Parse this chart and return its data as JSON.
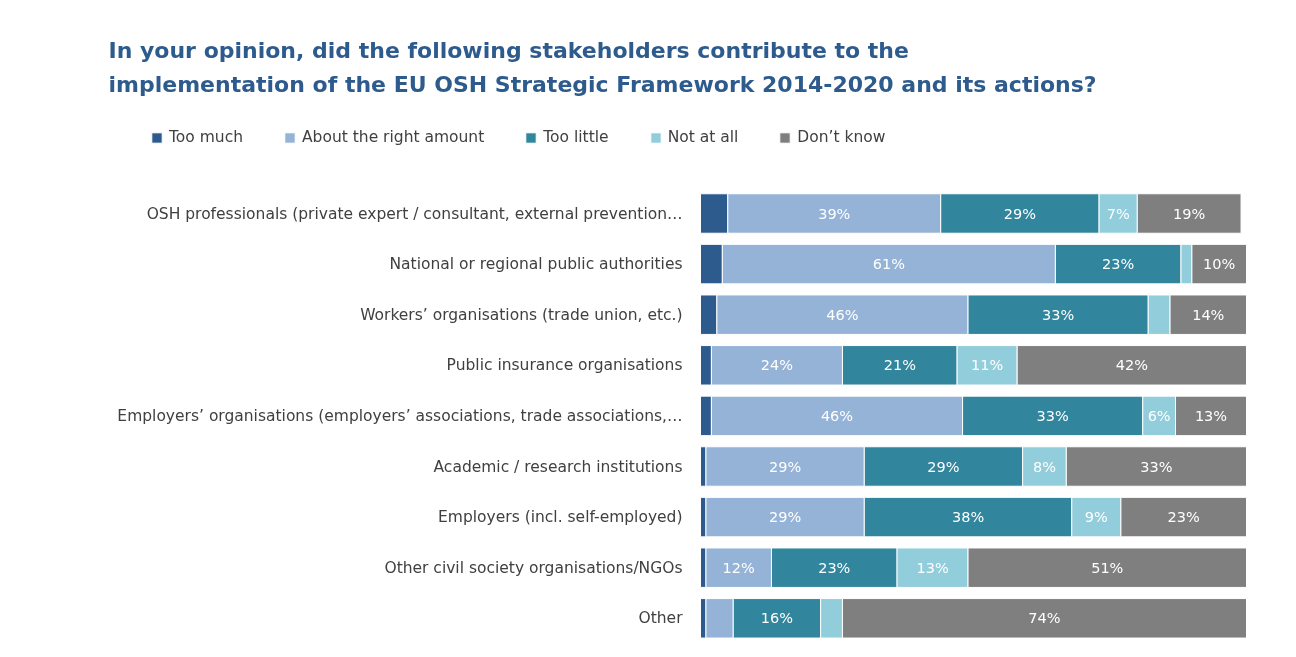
{
  "chart_data": {
    "type": "bar",
    "orientation": "horizontal",
    "stacked": true,
    "legend": "top",
    "grid": false,
    "title": "In your opinion, did the following stakeholders contribute to the implementation of the EU OSH Strategic Framework 2014-2020 and its actions?",
    "categories": [
      "OSH professionals (private expert / consultant, external prevention…",
      "National or regional public authorities",
      "Workers’ organisations (trade union, etc.)",
      "Public insurance organisations",
      "Employers’ organisations (employers’ associations, trade associations,…",
      "Academic / research institutions",
      "Employers (incl. self-employed)",
      "Other civil society organisations/NGOs",
      "Other"
    ],
    "series": [
      {
        "name": "Too much",
        "color": "#2e5b8e",
        "values": [
          5,
          4,
          3,
          2,
          2,
          1,
          1,
          1,
          1
        ],
        "value_labels": [
          null,
          null,
          null,
          null,
          null,
          null,
          null,
          null,
          null
        ]
      },
      {
        "name": "About the right amount",
        "color": "#95b3d7",
        "values": [
          39,
          61,
          46,
          24,
          46,
          29,
          29,
          12,
          5
        ],
        "value_labels": [
          "39%",
          "61%",
          "46%",
          "24%",
          "46%",
          "29%",
          "29%",
          "12%",
          null
        ]
      },
      {
        "name": "Too little",
        "color": "#31859c",
        "values": [
          29,
          23,
          33,
          21,
          33,
          29,
          38,
          23,
          16
        ],
        "value_labels": [
          "29%",
          "23%",
          "33%",
          "21%",
          "33%",
          "29%",
          "38%",
          "23%",
          "16%"
        ]
      },
      {
        "name": "Not at all",
        "color": "#92cddc",
        "values": [
          7,
          2,
          4,
          11,
          6,
          8,
          9,
          13,
          4
        ],
        "value_labels": [
          "7%",
          null,
          null,
          "11%",
          "6%",
          "8%",
          "9%",
          "13%",
          null
        ]
      },
      {
        "name": "Don’t know",
        "color": "#7f7f7f",
        "values": [
          19,
          10,
          14,
          42,
          13,
          33,
          23,
          51,
          74
        ],
        "value_labels": [
          "19%",
          "10%",
          "14%",
          "42%",
          "13%",
          "33%",
          "23%",
          "51%",
          "74%"
        ]
      }
    ]
  }
}
